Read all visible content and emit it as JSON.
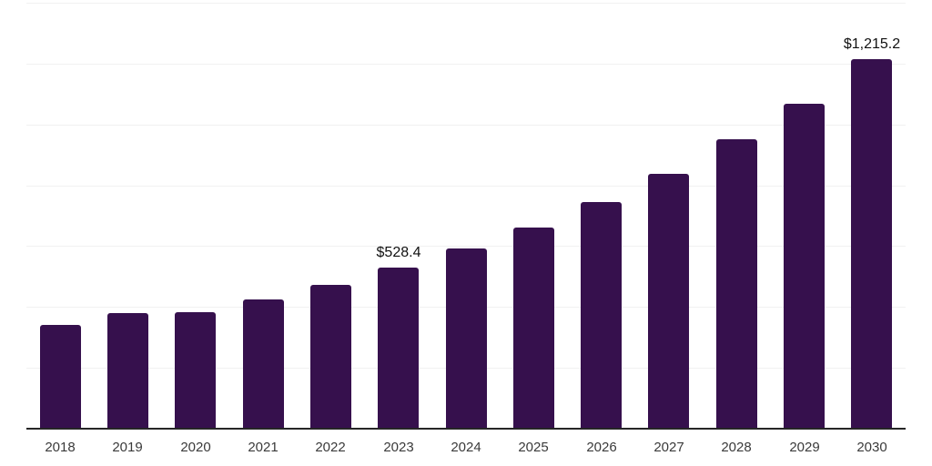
{
  "chart_data": {
    "type": "bar",
    "title": "",
    "xlabel": "",
    "ylabel": "",
    "categories": [
      "2018",
      "2019",
      "2020",
      "2021",
      "2022",
      "2023",
      "2024",
      "2025",
      "2026",
      "2027",
      "2028",
      "2029",
      "2030"
    ],
    "values": [
      340,
      379,
      382,
      426,
      474,
      528.4,
      593,
      662,
      745,
      838,
      951,
      1067,
      1215.2
    ],
    "ylim": [
      0,
      1400
    ],
    "gridline_step": 200,
    "grid": true,
    "legend": false,
    "y_tick_labels_visible": false,
    "data_labels": [
      {
        "category": "2023",
        "text": "$528.4"
      },
      {
        "category": "2030",
        "text": "$1,215.2"
      }
    ]
  },
  "colors": {
    "background": "#ffffff",
    "bar": "#36104D",
    "axis_line": "#262626",
    "gridline": "#f1f1f1",
    "tick_label": "#3a3a3a",
    "data_label": "#111111"
  }
}
